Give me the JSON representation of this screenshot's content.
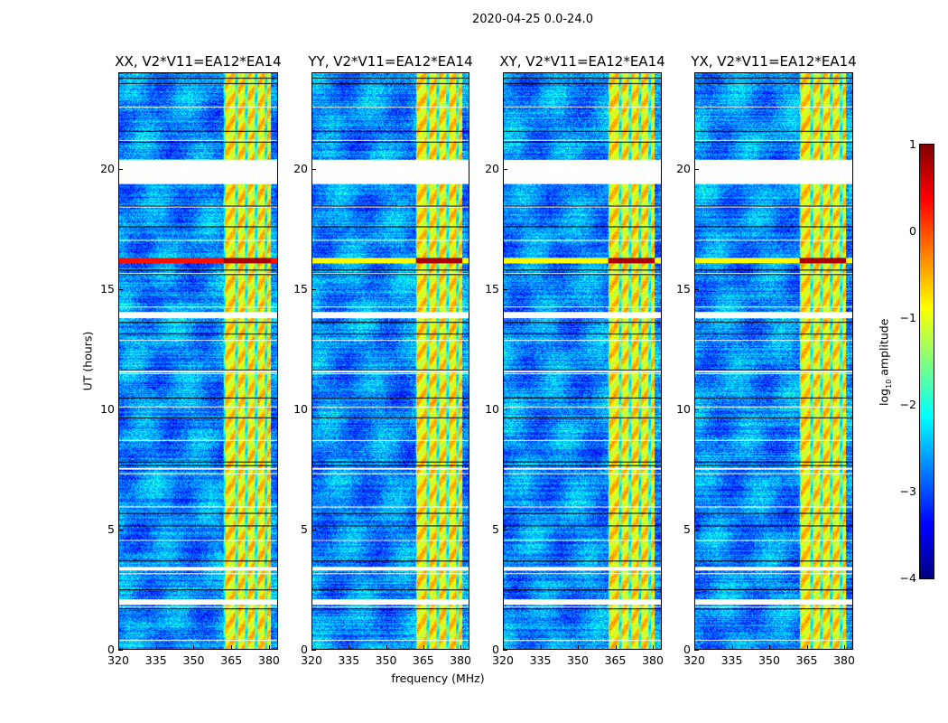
{
  "chart_data": {
    "type": "heatmap",
    "title": "2020-04-25 0.0-24.0",
    "xlabel": "frequency (MHz)",
    "ylabel": "UT (hours)",
    "xlim": [
      320,
      383.6
    ],
    "ylim": [
      0,
      24
    ],
    "xticks": [
      320,
      335,
      350,
      365,
      380
    ],
    "yticks": [
      0,
      5,
      10,
      15,
      20
    ],
    "panels": [
      {
        "title": "XX, V2*V11=EA12*EA14"
      },
      {
        "title": "YY, V2*V11=EA12*EA14"
      },
      {
        "title": "XY, V2*V11=EA12*EA14"
      },
      {
        "title": "YX, V2*V11=EA12*EA14"
      }
    ],
    "rfi_band_mhz": [
      362,
      381
    ],
    "rfi_band_log10_amplitude": -0.8,
    "background_log10_amplitude": -2.7,
    "strong_rfi_hour": 16.2,
    "flagged_hours": [
      [
        19.4,
        20.4
      ],
      [
        13.8,
        14.05
      ],
      [
        1.85,
        2.07
      ],
      [
        3.3,
        3.45
      ],
      [
        7.5,
        7.58
      ],
      [
        11.55,
        11.62
      ]
    ],
    "colorbar": {
      "label": "log10 amplitude",
      "label_main": "log",
      "label_sub": "10",
      "label_rest": " amplitude",
      "colormap": "jet",
      "vmin": -4,
      "vmax": 1,
      "ticks": [
        "1",
        "0",
        "−1",
        "−2",
        "−3",
        "−4"
      ],
      "tick_values": [
        1,
        0,
        -1,
        -2,
        -3,
        -4
      ]
    }
  }
}
